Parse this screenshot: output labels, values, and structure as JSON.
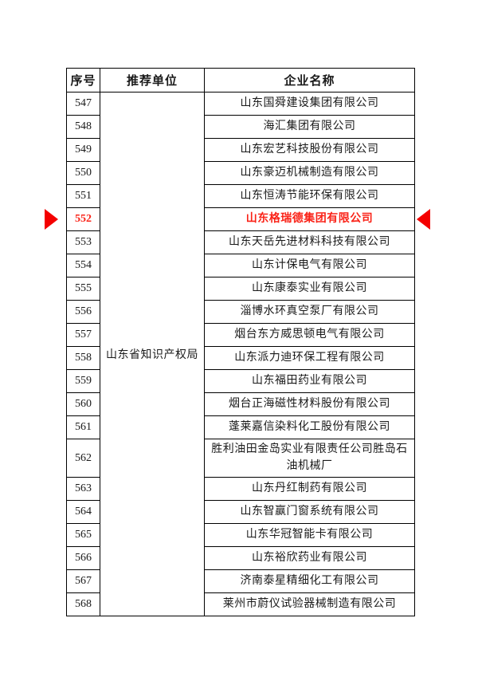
{
  "page": {
    "background": "#ffffff"
  },
  "colors": {
    "arrow": "#f40000",
    "highlight_text": "#fa2318",
    "border": "#000000"
  },
  "icons": {
    "left_marker": "right-pointing-triangle-arrow",
    "right_marker": "left-pointing-triangle-arrow"
  },
  "table": {
    "headers": [
      "序号",
      "推荐单位",
      "企业名称"
    ],
    "recommending_unit": "山东省知识产权局",
    "highlighted_row_no": "552",
    "rows": [
      {
        "no": "547",
        "company": "山东国舜建设集团有限公司",
        "highlighted": false,
        "tall": false
      },
      {
        "no": "548",
        "company": "海汇集团有限公司",
        "highlighted": false,
        "tall": false
      },
      {
        "no": "549",
        "company": "山东宏艺科技股份有限公司",
        "highlighted": false,
        "tall": false
      },
      {
        "no": "550",
        "company": "山东豪迈机械制造有限公司",
        "highlighted": false,
        "tall": false
      },
      {
        "no": "551",
        "company": "山东恒涛节能环保有限公司",
        "highlighted": false,
        "tall": false
      },
      {
        "no": "552",
        "company": "山东格瑞德集团有限公司",
        "highlighted": true,
        "tall": false
      },
      {
        "no": "553",
        "company": "山东天岳先进材料科技有限公司",
        "highlighted": false,
        "tall": false
      },
      {
        "no": "554",
        "company": "山东计保电气有限公司",
        "highlighted": false,
        "tall": false
      },
      {
        "no": "555",
        "company": "山东康泰实业有限公司",
        "highlighted": false,
        "tall": false
      },
      {
        "no": "556",
        "company": "淄博水环真空泵厂有限公司",
        "highlighted": false,
        "tall": false
      },
      {
        "no": "557",
        "company": "烟台东方威思顿电气有限公司",
        "highlighted": false,
        "tall": false
      },
      {
        "no": "558",
        "company": "山东派力迪环保工程有限公司",
        "highlighted": false,
        "tall": false
      },
      {
        "no": "559",
        "company": "山东福田药业有限公司",
        "highlighted": false,
        "tall": false
      },
      {
        "no": "560",
        "company": "烟台正海磁性材料股份有限公司",
        "highlighted": false,
        "tall": false
      },
      {
        "no": "561",
        "company": "蓬莱嘉信染料化工股份有限公司",
        "highlighted": false,
        "tall": false
      },
      {
        "no": "562",
        "company": "胜利油田金岛实业有限责任公司胜岛石油机械厂",
        "highlighted": false,
        "tall": true
      },
      {
        "no": "563",
        "company": "山东丹红制药有限公司",
        "highlighted": false,
        "tall": false
      },
      {
        "no": "564",
        "company": "山东智赢门窗系统有限公司",
        "highlighted": false,
        "tall": false
      },
      {
        "no": "565",
        "company": "山东华冠智能卡有限公司",
        "highlighted": false,
        "tall": false
      },
      {
        "no": "566",
        "company": "山东裕欣药业有限公司",
        "highlighted": false,
        "tall": false
      },
      {
        "no": "567",
        "company": "济南泰星精细化工有限公司",
        "highlighted": false,
        "tall": false
      },
      {
        "no": "568",
        "company": "莱州市蔚仪试验器械制造有限公司",
        "highlighted": false,
        "tall": false
      }
    ]
  }
}
